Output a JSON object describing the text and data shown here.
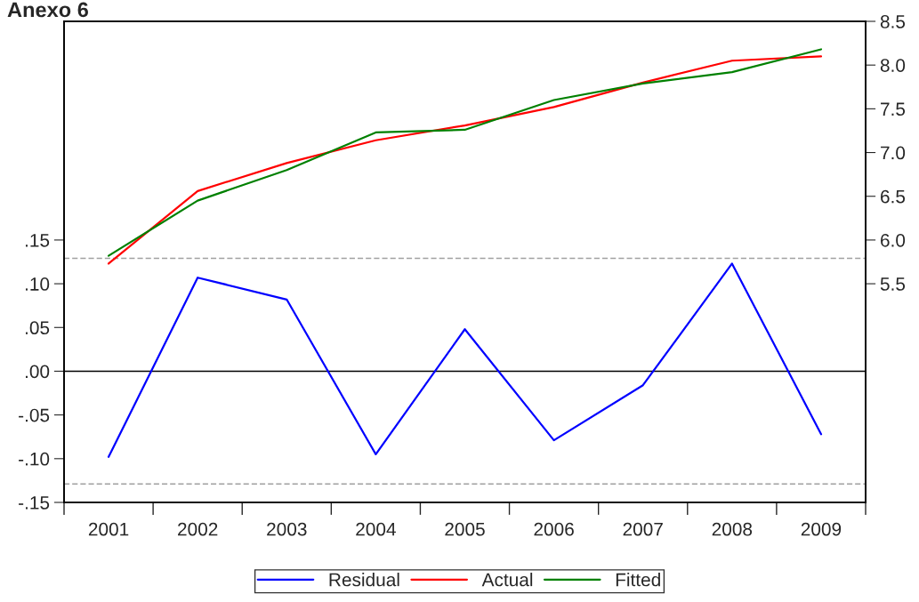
{
  "chart_data": {
    "type": "line",
    "title": "Anexo 6",
    "categories": [
      "2001",
      "2002",
      "2003",
      "2004",
      "2005",
      "2006",
      "2007",
      "2008",
      "2009"
    ],
    "series": [
      {
        "name": "Residual",
        "color": "#0000ff",
        "values": [
          -0.098,
          0.107,
          0.082,
          -0.095,
          0.048,
          -0.079,
          -0.016,
          0.123,
          -0.072
        ]
      },
      {
        "name": "Actual",
        "color": "#ff0000",
        "axis": "y2",
        "values": [
          5.73,
          6.56,
          6.88,
          7.14,
          7.31,
          7.52,
          7.8,
          8.05,
          8.1
        ]
      },
      {
        "name": "Fitted",
        "color": "#008000",
        "axis": "y2",
        "values": [
          5.82,
          6.45,
          6.8,
          7.23,
          7.26,
          7.6,
          7.79,
          7.92,
          8.18
        ]
      }
    ],
    "ylim": [
      -0.15,
      0.4
    ],
    "yticks": [
      {
        "value": -0.15,
        "label": "-.15"
      },
      {
        "value": -0.1,
        "label": "-.10"
      },
      {
        "value": -0.05,
        "label": "-.05"
      },
      {
        "value": 0,
        "label": ".00"
      },
      {
        "value": 0.05,
        "label": ".05"
      },
      {
        "value": 0.1,
        "label": ".10"
      },
      {
        "value": 0.15,
        "label": ".15"
      }
    ],
    "y2lim": [
      3.0,
      8.5
    ],
    "y2ticks": [
      {
        "value": 5.5,
        "label": "5.5"
      },
      {
        "value": 6.0,
        "label": "6.0"
      },
      {
        "value": 6.5,
        "label": "6.5"
      },
      {
        "value": 7.0,
        "label": "7.0"
      },
      {
        "value": 7.5,
        "label": "7.5"
      },
      {
        "value": 8.0,
        "label": "8.0"
      },
      {
        "value": 8.5,
        "label": "8.5"
      }
    ],
    "ref_lines": [
      {
        "axis": "y",
        "value": 0,
        "color": "#000000",
        "line_style": "solid"
      },
      {
        "axis": "y",
        "value": 0.129,
        "color": "#a0a0a0",
        "line_style": "dashed"
      },
      {
        "axis": "y",
        "value": -0.129,
        "color": "#a0a0a0",
        "line_style": "dashed"
      }
    ],
    "grid": false,
    "legend": "bottom",
    "marker": "none",
    "line_style": "solid"
  }
}
